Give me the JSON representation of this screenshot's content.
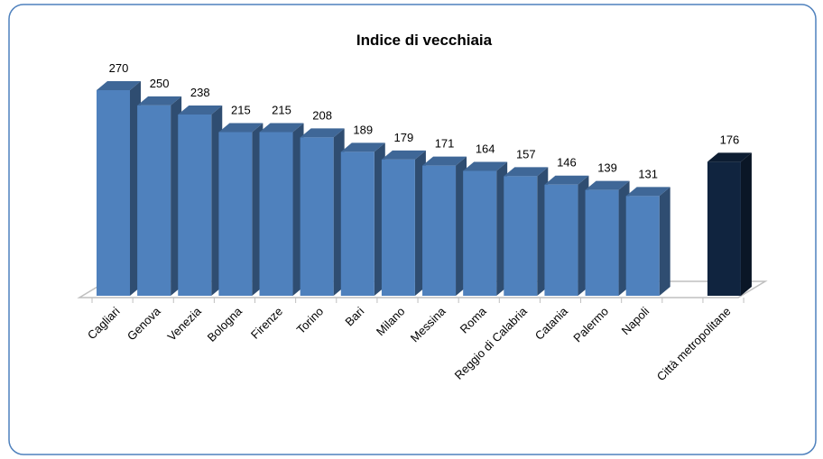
{
  "chart_data": {
    "type": "bar3d",
    "title": "Indice di vecchiaia",
    "categories": [
      "Cagliari",
      "Genova",
      "Venezia",
      "Bologna",
      "Firenze",
      "Torino",
      "Bari",
      "Milano",
      "Messina",
      "Roma",
      "Reggio di Calabria",
      "Catania",
      "Palermo",
      "Napoli",
      null,
      "Città metropolitane"
    ],
    "values": [
      270,
      250,
      238,
      215,
      215,
      208,
      189,
      179,
      171,
      164,
      157,
      146,
      139,
      131,
      null,
      176
    ],
    "colors": [
      "#4f81bd",
      "#4f81bd",
      "#4f81bd",
      "#4f81bd",
      "#4f81bd",
      "#4f81bd",
      "#4f81bd",
      "#4f81bd",
      "#4f81bd",
      "#4f81bd",
      "#4f81bd",
      "#4f81bd",
      "#4f81bd",
      "#4f81bd",
      null,
      "#10243f"
    ]
  }
}
